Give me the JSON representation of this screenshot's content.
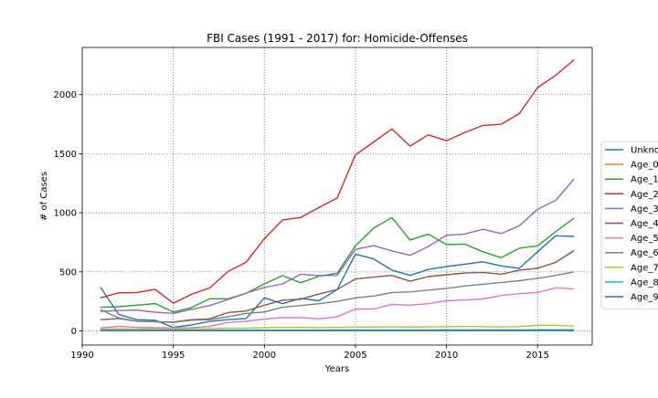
{
  "chart_data": {
    "type": "line",
    "title": "FBI Cases (1991 - 2017) for: Homicide-Offenses",
    "xlabel": "Years",
    "ylabel": "# of Cases",
    "xlim": [
      1990,
      2018
    ],
    "ylim": [
      -120,
      2400
    ],
    "xticks": [
      1990,
      1995,
      2000,
      2005,
      2010,
      2015
    ],
    "yticks": [
      0,
      500,
      1000,
      1500,
      2000
    ],
    "grid": true,
    "legend": "right, clipped",
    "x": [
      1991,
      1992,
      1993,
      1994,
      1995,
      1996,
      1997,
      1998,
      1999,
      2000,
      2001,
      2002,
      2003,
      2004,
      2005,
      2006,
      2007,
      2008,
      2009,
      2010,
      2011,
      2012,
      2013,
      2014,
      2015,
      2016,
      2017
    ],
    "series": [
      {
        "name": "Unkno",
        "color": "#1f77b4",
        "values": [
          370,
          140,
          95,
          90,
          30,
          50,
          80,
          95,
          105,
          280,
          230,
          275,
          255,
          350,
          650,
          610,
          515,
          470,
          520,
          545,
          565,
          585,
          550,
          530,
          670,
          805,
          800
        ]
      },
      {
        "name": "Age_0",
        "color": "#ff7f0e",
        "values": [
          5,
          4,
          4,
          3,
          3,
          3,
          3,
          3,
          3,
          3,
          3,
          3,
          3,
          3,
          3,
          3,
          3,
          3,
          3,
          3,
          3,
          3,
          3,
          3,
          3,
          3,
          3
        ]
      },
      {
        "name": "Age_1",
        "color": "#2ca02c",
        "values": [
          200,
          205,
          218,
          232,
          160,
          198,
          272,
          272,
          318,
          398,
          468,
          408,
          463,
          488,
          720,
          870,
          960,
          770,
          820,
          730,
          735,
          670,
          620,
          700,
          720,
          840,
          955
        ]
      },
      {
        "name": "Age_2",
        "color": "#d62728",
        "values": [
          280,
          322,
          325,
          352,
          235,
          310,
          364,
          502,
          582,
          780,
          940,
          960,
          1045,
          1125,
          1490,
          1600,
          1710,
          1565,
          1660,
          1610,
          1680,
          1740,
          1750,
          1840,
          2060,
          2165,
          2295
        ]
      },
      {
        "name": "Age_3",
        "color": "#9467bd",
        "values": [
          165,
          172,
          176,
          158,
          148,
          182,
          215,
          265,
          320,
          368,
          398,
          480,
          468,
          470,
          690,
          722,
          678,
          640,
          715,
          810,
          820,
          860,
          825,
          890,
          1030,
          1105,
          1285
        ]
      },
      {
        "name": "Age_4",
        "color": "#8c564b",
        "values": [
          95,
          105,
          82,
          78,
          75,
          95,
          102,
          155,
          168,
          218,
          260,
          268,
          312,
          350,
          440,
          455,
          470,
          420,
          460,
          475,
          490,
          495,
          480,
          515,
          530,
          580,
          680
        ]
      },
      {
        "name": "Age_5",
        "color": "#e377c2",
        "values": [
          25,
          38,
          30,
          28,
          25,
          28,
          38,
          72,
          82,
          100,
          112,
          112,
          102,
          120,
          185,
          185,
          225,
          218,
          230,
          255,
          262,
          270,
          300,
          315,
          325,
          365,
          355
        ]
      },
      {
        "name": "Age_6",
        "color": "#7f7f7f",
        "values": [
          180,
          110,
          82,
          78,
          72,
          90,
          95,
          120,
          148,
          160,
          200,
          215,
          230,
          250,
          280,
          295,
          325,
          330,
          345,
          360,
          380,
          395,
          410,
          425,
          445,
          470,
          500
        ]
      },
      {
        "name": "Age_7",
        "color": "#bcbd22",
        "values": [
          15,
          18,
          16,
          18,
          14,
          18,
          20,
          22,
          24,
          28,
          30,
          30,
          28,
          30,
          32,
          32,
          34,
          32,
          34,
          36,
          38,
          36,
          34,
          36,
          48,
          48,
          40
        ]
      },
      {
        "name": "Age_8",
        "color": "#17becf",
        "values": [
          6,
          5,
          6,
          5,
          5,
          6,
          6,
          6,
          7,
          7,
          7,
          7,
          7,
          8,
          8,
          8,
          8,
          8,
          8,
          9,
          9,
          9,
          9,
          9,
          10,
          10,
          10
        ]
      },
      {
        "name": "Age_9",
        "color": "#1f77b4",
        "values": [
          3,
          3,
          3,
          3,
          3,
          3,
          3,
          3,
          3,
          3,
          3,
          3,
          3,
          3,
          3,
          3,
          3,
          3,
          3,
          3,
          3,
          3,
          3,
          3,
          3,
          3,
          3
        ]
      }
    ]
  }
}
